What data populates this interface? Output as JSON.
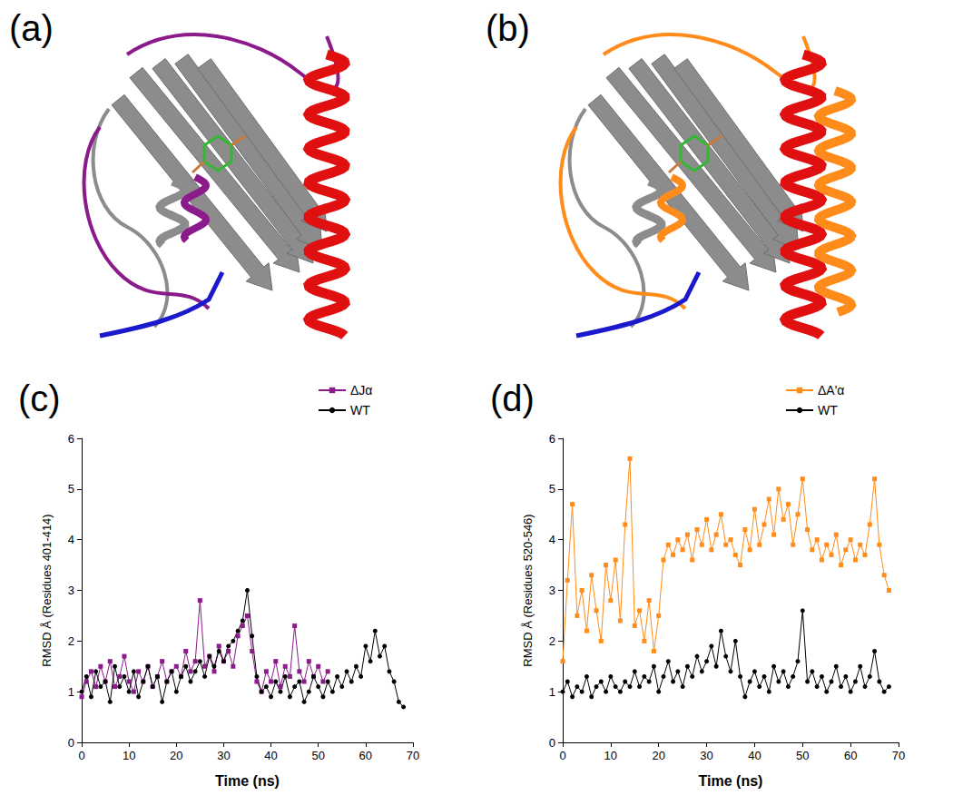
{
  "images": [
    {
      "label": "(a)"
    },
    {
      "label": "(b)"
    }
  ],
  "chart_data": [
    {
      "type": "line",
      "title": "(c)",
      "x_label": "Time (ns)",
      "y_label": "RMSD Å (Residues 401-414)",
      "xlim": [
        0,
        70
      ],
      "xticks": [
        0,
        10,
        20,
        30,
        40,
        50,
        60,
        70
      ],
      "ylim": [
        0,
        6
      ],
      "yticks": [
        0,
        1,
        2,
        3,
        4,
        5,
        6
      ],
      "grid": false,
      "legend": "upper right",
      "x": [
        0,
        1,
        2,
        3,
        4,
        5,
        6,
        7,
        8,
        9,
        10,
        11,
        12,
        13,
        14,
        15,
        16,
        17,
        18,
        19,
        20,
        21,
        22,
        23,
        24,
        25,
        26,
        27,
        28,
        29,
        30,
        31,
        32,
        33,
        34,
        35,
        36,
        37,
        38,
        39,
        40,
        41,
        42,
        43,
        44,
        45,
        46,
        47,
        48,
        49,
        50,
        51,
        52,
        53,
        54,
        55,
        56,
        57,
        58,
        59,
        60,
        61,
        62,
        63,
        64,
        65,
        66,
        67,
        68
      ],
      "series": [
        {
          "name": "ΔJα",
          "color": "#8b1a8b",
          "marker": "square",
          "line_style": "solid",
          "values": [
            0.9,
            1.2,
            1.4,
            1.1,
            1.5,
            1.2,
            1.6,
            1.1,
            1.3,
            1.7,
            1.2,
            1.0,
            1.4,
            1.2,
            1.5,
            1.1,
            1.3,
            1.6,
            1.2,
            1.4,
            1.5,
            1.3,
            1.8,
            1.4,
            1.6,
            2.8,
            1.5,
            1.7,
            1.4,
            1.9,
            1.6,
            1.8,
            1.5,
            2.1,
            2.3,
            2.5,
            1.8,
            1.2,
            1.0,
            1.4,
            1.2,
            1.6,
            1.1,
            1.5,
            1.3,
            2.3,
            1.4,
            1.2,
            1.6,
            1.3,
            1.5,
            1.2,
            1.4,
            null,
            null,
            null,
            null,
            null,
            null,
            null,
            null,
            null,
            null,
            null,
            null,
            null,
            null,
            null,
            null
          ]
        },
        {
          "name": "WT",
          "color": "#000000",
          "marker": "circle",
          "line_style": "solid",
          "values": [
            1.0,
            1.3,
            0.9,
            1.4,
            1.1,
            1.2,
            0.8,
            1.5,
            1.1,
            1.3,
            1.0,
            1.4,
            0.9,
            1.2,
            1.5,
            1.1,
            1.3,
            0.8,
            1.2,
            1.4,
            1.0,
            1.3,
            1.5,
            1.2,
            1.4,
            1.6,
            1.3,
            1.7,
            1.5,
            1.8,
            1.6,
            1.9,
            2.0,
            2.2,
            2.4,
            3.0,
            2.1,
            1.3,
            1.0,
            1.1,
            0.9,
            1.2,
            1.0,
            1.3,
            0.9,
            1.1,
            1.2,
            0.8,
            1.0,
            1.3,
            1.1,
            0.9,
            1.2,
            1.0,
            1.3,
            1.1,
            1.4,
            1.2,
            1.5,
            1.3,
            1.9,
            1.6,
            2.2,
            1.7,
            1.9,
            1.4,
            1.2,
            0.8,
            0.7
          ]
        }
      ]
    },
    {
      "type": "line",
      "title": "(d)",
      "x_label": "Time (ns)",
      "y_label": "RMSD Å (Residues 520-546)",
      "xlim": [
        0,
        70
      ],
      "xticks": [
        0,
        10,
        20,
        30,
        40,
        50,
        60,
        70
      ],
      "ylim": [
        0,
        6
      ],
      "yticks": [
        0,
        1,
        2,
        3,
        4,
        5,
        6
      ],
      "grid": false,
      "legend": "upper right",
      "x": [
        0,
        1,
        2,
        3,
        4,
        5,
        6,
        7,
        8,
        9,
        10,
        11,
        12,
        13,
        14,
        15,
        16,
        17,
        18,
        19,
        20,
        21,
        22,
        23,
        24,
        25,
        26,
        27,
        28,
        29,
        30,
        31,
        32,
        33,
        34,
        35,
        36,
        37,
        38,
        39,
        40,
        41,
        42,
        43,
        44,
        45,
        46,
        47,
        48,
        49,
        50,
        51,
        52,
        53,
        54,
        55,
        56,
        57,
        58,
        59,
        60,
        61,
        62,
        63,
        64,
        65,
        66,
        67,
        68
      ],
      "series": [
        {
          "name": "ΔA'α",
          "color": "#ff8c1a",
          "marker": "square",
          "line_style": "solid",
          "values": [
            1.6,
            3.2,
            4.7,
            2.5,
            3.0,
            2.2,
            3.3,
            2.6,
            2.0,
            3.5,
            2.8,
            3.6,
            2.4,
            4.3,
            5.6,
            2.3,
            2.6,
            2.0,
            2.8,
            1.8,
            2.5,
            3.6,
            3.9,
            3.7,
            4.0,
            3.8,
            4.1,
            3.6,
            4.2,
            3.9,
            4.4,
            3.8,
            4.1,
            4.5,
            3.9,
            4.0,
            3.7,
            3.5,
            4.2,
            3.8,
            4.6,
            3.9,
            4.3,
            4.8,
            4.1,
            5.0,
            4.4,
            4.7,
            3.9,
            4.5,
            5.2,
            4.2,
            3.8,
            4.0,
            3.6,
            3.9,
            3.7,
            4.1,
            3.5,
            3.8,
            4.0,
            3.6,
            3.9,
            3.7,
            4.3,
            5.2,
            3.9,
            3.3,
            3.0
          ]
        },
        {
          "name": "WT",
          "color": "#000000",
          "marker": "circle",
          "line_style": "solid",
          "values": [
            1.0,
            1.2,
            0.9,
            1.1,
            1.0,
            1.3,
            0.9,
            1.1,
            1.2,
            1.0,
            1.3,
            1.1,
            1.0,
            1.2,
            1.1,
            1.4,
            1.1,
            1.3,
            1.2,
            1.5,
            1.0,
            1.3,
            1.6,
            1.2,
            1.4,
            1.1,
            1.5,
            1.3,
            1.7,
            1.4,
            1.6,
            1.9,
            1.5,
            2.2,
            1.7,
            1.4,
            2.0,
            1.3,
            0.9,
            1.2,
            1.4,
            1.1,
            1.3,
            1.0,
            1.5,
            1.2,
            1.4,
            1.1,
            1.3,
            1.6,
            2.6,
            1.2,
            1.4,
            1.1,
            1.3,
            1.0,
            1.2,
            1.5,
            1.1,
            1.3,
            1.0,
            1.2,
            1.5,
            1.1,
            1.3,
            1.8,
            1.2,
            1.0,
            1.1
          ]
        }
      ]
    }
  ]
}
